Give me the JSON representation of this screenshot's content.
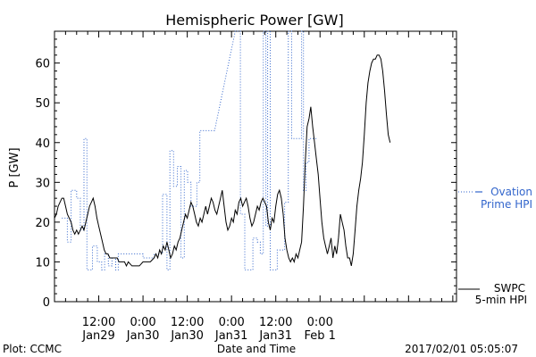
{
  "chart_data": {
    "type": "line",
    "title": "Hemispheric Power [GW]",
    "ylabel": "P [GW]",
    "xlabel": "Date and Time",
    "ylim": [
      0,
      68
    ],
    "xlim": [
      0,
      109
    ],
    "y_ticks": [
      0,
      10,
      20,
      30,
      40,
      50,
      60
    ],
    "x_ticks": [
      {
        "x": 12,
        "time": "12:00",
        "date": "Jan29"
      },
      {
        "x": 24,
        "time": "0:00",
        "date": "Jan30"
      },
      {
        "x": 36,
        "time": "12:00",
        "date": "Jan30"
      },
      {
        "x": 48,
        "time": "0:00",
        "date": "Jan31"
      },
      {
        "x": 60,
        "time": "12:00",
        "date": "Jan31"
      },
      {
        "x": 72,
        "time": "0:00",
        "date": "Feb 1"
      }
    ],
    "x_unit": "hours after 2017-01-29 00:00 UTC",
    "series": [
      {
        "name": "SWPC 5-min HPI",
        "color": "#000000",
        "style": "solid",
        "points": [
          [
            0,
            21
          ],
          [
            0.5,
            22
          ],
          [
            1,
            24
          ],
          [
            1.5,
            25
          ],
          [
            2,
            26
          ],
          [
            2.5,
            26
          ],
          [
            3,
            24
          ],
          [
            3.5,
            22
          ],
          [
            4,
            21
          ],
          [
            4.5,
            20
          ],
          [
            5,
            18
          ],
          [
            5.5,
            17
          ],
          [
            6,
            18
          ],
          [
            6.5,
            17
          ],
          [
            7,
            18
          ],
          [
            7.5,
            19
          ],
          [
            8,
            18
          ],
          [
            8.5,
            20
          ],
          [
            9,
            22
          ],
          [
            9.5,
            24
          ],
          [
            10,
            25
          ],
          [
            10.5,
            26
          ],
          [
            11,
            24
          ],
          [
            11.5,
            21
          ],
          [
            12,
            19
          ],
          [
            12.5,
            17
          ],
          [
            13,
            15
          ],
          [
            13.5,
            13
          ],
          [
            14,
            12
          ],
          [
            14.5,
            12
          ],
          [
            15,
            11
          ],
          [
            16,
            11
          ],
          [
            17,
            11
          ],
          [
            17.5,
            10
          ],
          [
            18,
            10
          ],
          [
            19,
            10
          ],
          [
            19.5,
            9
          ],
          [
            20,
            10
          ],
          [
            21,
            9
          ],
          [
            22,
            9
          ],
          [
            23,
            9
          ],
          [
            24,
            10
          ],
          [
            25,
            10
          ],
          [
            26,
            10
          ],
          [
            27,
            11
          ],
          [
            27.5,
            12
          ],
          [
            28,
            11
          ],
          [
            28.5,
            13
          ],
          [
            29,
            12
          ],
          [
            29.5,
            14
          ],
          [
            30,
            13
          ],
          [
            30.5,
            15
          ],
          [
            31,
            13
          ],
          [
            31.5,
            11
          ],
          [
            32,
            12
          ],
          [
            32.5,
            14
          ],
          [
            33,
            13
          ],
          [
            33.5,
            15
          ],
          [
            34,
            16
          ],
          [
            34.5,
            18
          ],
          [
            35,
            20
          ],
          [
            35.5,
            22
          ],
          [
            36,
            21
          ],
          [
            36.5,
            23
          ],
          [
            37,
            25
          ],
          [
            37.5,
            24
          ],
          [
            38,
            22
          ],
          [
            38.5,
            20
          ],
          [
            39,
            19
          ],
          [
            39.5,
            21
          ],
          [
            40,
            20
          ],
          [
            40.5,
            22
          ],
          [
            41,
            24
          ],
          [
            41.5,
            22
          ],
          [
            42,
            24
          ],
          [
            42.5,
            26
          ],
          [
            43,
            25
          ],
          [
            43.5,
            23
          ],
          [
            44,
            22
          ],
          [
            44.5,
            24
          ],
          [
            45,
            26
          ],
          [
            45.5,
            28
          ],
          [
            46,
            24
          ],
          [
            46.5,
            20
          ],
          [
            47,
            18
          ],
          [
            47.5,
            19
          ],
          [
            48,
            21
          ],
          [
            48.5,
            20
          ],
          [
            49,
            23
          ],
          [
            49.5,
            22
          ],
          [
            50,
            25
          ],
          [
            50.5,
            26
          ],
          [
            51,
            24
          ],
          [
            51.5,
            25
          ],
          [
            52,
            26
          ],
          [
            52.5,
            24
          ],
          [
            53,
            21
          ],
          [
            53.5,
            19
          ],
          [
            54,
            20
          ],
          [
            54.5,
            22
          ],
          [
            55,
            24
          ],
          [
            55.5,
            23
          ],
          [
            56,
            25
          ],
          [
            56.5,
            26
          ],
          [
            57,
            25
          ],
          [
            57.5,
            24
          ],
          [
            58,
            20
          ],
          [
            58.5,
            18
          ],
          [
            59,
            21
          ],
          [
            59.5,
            20
          ],
          [
            60,
            24
          ],
          [
            60.5,
            27
          ],
          [
            61,
            28
          ],
          [
            61.5,
            26
          ],
          [
            62,
            22
          ],
          [
            62.5,
            16
          ],
          [
            63,
            13
          ],
          [
            63.5,
            11
          ],
          [
            64,
            10
          ],
          [
            64.5,
            11
          ],
          [
            65,
            10
          ],
          [
            65.5,
            12
          ],
          [
            66,
            11
          ],
          [
            66.5,
            13
          ],
          [
            67,
            15
          ],
          [
            67.5,
            24
          ],
          [
            68,
            35
          ],
          [
            68.5,
            44
          ],
          [
            69,
            46
          ],
          [
            69.5,
            49
          ],
          [
            70,
            44
          ],
          [
            70.5,
            40
          ],
          [
            71,
            36
          ],
          [
            71.5,
            32
          ],
          [
            72,
            26
          ],
          [
            72.5,
            20
          ],
          [
            73,
            16
          ],
          [
            73.5,
            14
          ],
          [
            74,
            12
          ],
          [
            74.5,
            14
          ],
          [
            75,
            16
          ],
          [
            75.5,
            11
          ],
          [
            76,
            14
          ],
          [
            76.5,
            12
          ],
          [
            77,
            16
          ],
          [
            77.5,
            22
          ],
          [
            78,
            20
          ],
          [
            78.5,
            18
          ],
          [
            79,
            14
          ],
          [
            79.5,
            11
          ],
          [
            80,
            11
          ],
          [
            80.5,
            9
          ],
          [
            81,
            12
          ],
          [
            81.5,
            18
          ],
          [
            82,
            24
          ],
          [
            82.5,
            28
          ],
          [
            83,
            31
          ],
          [
            83.5,
            35
          ],
          [
            84,
            42
          ],
          [
            84.5,
            50
          ],
          [
            85,
            55
          ],
          [
            85.5,
            58
          ],
          [
            86,
            60
          ],
          [
            86.5,
            61
          ],
          [
            87,
            61
          ],
          [
            87.5,
            62
          ],
          [
            88,
            62
          ],
          [
            88.5,
            61
          ],
          [
            89,
            58
          ],
          [
            89.5,
            53
          ],
          [
            90,
            47
          ],
          [
            90.5,
            42
          ],
          [
            91,
            40
          ]
        ]
      },
      {
        "name": "Ovation Prime HPI",
        "color": "#3366cc",
        "style": "dotted",
        "points": [
          [
            2,
            21
          ],
          [
            3.5,
            21
          ],
          [
            3.5,
            15
          ],
          [
            4.5,
            15
          ],
          [
            4.5,
            28
          ],
          [
            6,
            28
          ],
          [
            6,
            26
          ],
          [
            7,
            26
          ],
          [
            7,
            18
          ],
          [
            8,
            18
          ],
          [
            8,
            41
          ],
          [
            8.8,
            41
          ],
          [
            8.8,
            8
          ],
          [
            10.3,
            8
          ],
          [
            10.3,
            14
          ],
          [
            11.6,
            14
          ],
          [
            11.6,
            10
          ],
          [
            12.8,
            10
          ],
          [
            12.8,
            8
          ],
          [
            13.6,
            8
          ],
          [
            13.6,
            12
          ],
          [
            14.6,
            12
          ],
          [
            14.6,
            9
          ],
          [
            15.6,
            9
          ],
          [
            15.6,
            11
          ],
          [
            16.6,
            11
          ],
          [
            16.6,
            8
          ],
          [
            17.3,
            8
          ],
          [
            17.3,
            12
          ],
          [
            24,
            12
          ],
          [
            24,
            11
          ],
          [
            27,
            11
          ],
          [
            27,
            12
          ],
          [
            29.3,
            12
          ],
          [
            29.3,
            27
          ],
          [
            30.5,
            27
          ],
          [
            30.5,
            8
          ],
          [
            31.3,
            8
          ],
          [
            31.3,
            38
          ],
          [
            32.3,
            38
          ],
          [
            32.3,
            29
          ],
          [
            33.3,
            29
          ],
          [
            33.3,
            34
          ],
          [
            34.3,
            34
          ],
          [
            34.3,
            11
          ],
          [
            35.2,
            11
          ],
          [
            35.2,
            33
          ],
          [
            36.1,
            33
          ],
          [
            36.1,
            30
          ],
          [
            37,
            30
          ],
          [
            37,
            24
          ],
          [
            38.6,
            24
          ],
          [
            38.6,
            30
          ],
          [
            39.4,
            30
          ],
          [
            39.4,
            43
          ],
          [
            43.4,
            43
          ],
          [
            49,
            68
          ],
          [
            50.4,
            68
          ],
          [
            50.4,
            22
          ],
          [
            51.6,
            22
          ],
          [
            51.6,
            8
          ],
          [
            53.8,
            8
          ],
          [
            53.8,
            16
          ],
          [
            55,
            16
          ],
          [
            55,
            15
          ],
          [
            55.8,
            15
          ],
          [
            55.8,
            12
          ],
          [
            56.6,
            12
          ],
          [
            56.6,
            68
          ],
          [
            57.3,
            68
          ],
          [
            57.3,
            19
          ],
          [
            57.8,
            19
          ],
          [
            57.8,
            68
          ],
          [
            58.5,
            68
          ],
          [
            58.5,
            8
          ],
          [
            60.4,
            8
          ],
          [
            60.4,
            13
          ],
          [
            62.4,
            13
          ],
          [
            62.4,
            25
          ],
          [
            63.4,
            25
          ],
          [
            63.4,
            68
          ],
          [
            64.3,
            68
          ],
          [
            64.3,
            41
          ],
          [
            67,
            41
          ],
          [
            67,
            68
          ],
          [
            67.5,
            68
          ],
          [
            67.5,
            28
          ],
          [
            68.2,
            28
          ],
          [
            68.2,
            35
          ],
          [
            69,
            35
          ],
          [
            69,
            41
          ],
          [
            71,
            41
          ]
        ]
      }
    ]
  },
  "legend": {
    "ovation_line1": "Ovation",
    "ovation_line2": "Prime HPI",
    "swpc_line1": "SWPC",
    "swpc_line2": "5-min HPI"
  },
  "footer": {
    "left": "Plot: CCMC",
    "right": "2017/02/01 05:05:07"
  }
}
